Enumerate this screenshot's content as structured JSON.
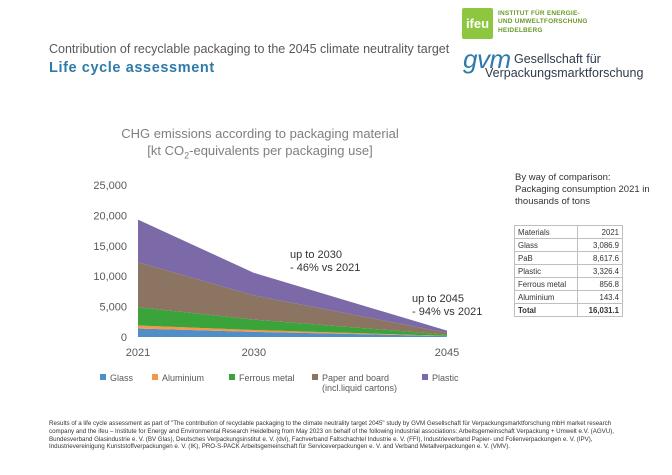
{
  "header": {
    "subtitle": "Contribution of recyclable packaging to the 2045 climate neutrality target",
    "heading": "Life cycle assessment"
  },
  "logos": {
    "ifeu_mark": "ifeu",
    "ifeu_name_line1": "INSTITUT FÜR ENERGIE-",
    "ifeu_name_line2": "UND UMWELTFORSCHUNG",
    "ifeu_name_line3": "HEIDELBERG",
    "gvm_mark": "gvm",
    "gvm_name_line1": "Gesellschaft für",
    "gvm_name_line2": "Verpackungsmarktforschung"
  },
  "chart_data": {
    "type": "area",
    "stacked": true,
    "title_line1": "CHG emissions according to packaging material",
    "title_line2_prefix": "[kt CO",
    "title_line2_sub": "2",
    "title_line2_suffix": "-equivalents per packaging use]",
    "x": [
      2021,
      2030,
      2045
    ],
    "x_tick_labels": [
      "2021",
      "2030",
      "2045"
    ],
    "ylim": [
      0,
      25000
    ],
    "y_ticks": [
      0,
      5000,
      10000,
      15000,
      20000,
      25000
    ],
    "y_tick_labels": [
      "0",
      "5,000",
      "10,000",
      "15,000",
      "20,000",
      "25,000"
    ],
    "grid": false,
    "legend_position": "bottom",
    "series": [
      {
        "name": "Glass",
        "color": "#4f8ec9",
        "values": [
          1400,
          850,
          150
        ]
      },
      {
        "name": "Aluminium",
        "color": "#f79646",
        "values": [
          500,
          300,
          40
        ]
      },
      {
        "name": "Ferrous metal",
        "color": "#3aa33a",
        "values": [
          3000,
          1700,
          200
        ]
      },
      {
        "name": "Paper and board",
        "name_line2": "(incl.liquid cartons)",
        "color": "#8c7462",
        "values": [
          7400,
          4000,
          300
        ]
      },
      {
        "name": "Plastic",
        "color": "#7b69a8",
        "values": [
          7000,
          3700,
          350
        ]
      }
    ],
    "annotations": [
      {
        "line1": "up to 2030",
        "line2": "- 46% vs 2021"
      },
      {
        "line1": "up to 2045",
        "line2": "- 94% vs 2021"
      }
    ]
  },
  "comparison": {
    "title": "By way of comparison:",
    "subtitle": "Packaging consumption 2021 in thousands of tons",
    "header": {
      "material": "Materials",
      "year": "2021"
    },
    "rows": [
      {
        "material": "Glass",
        "value": "3,086.9"
      },
      {
        "material": "PaB",
        "value": "8,617.6"
      },
      {
        "material": "Plastic",
        "value": "3,326.4"
      },
      {
        "material": "Ferrous metal",
        "value": "856.8"
      },
      {
        "material": "Aluminium",
        "value": "143.4"
      }
    ],
    "total": {
      "material": "Total",
      "value": "16,031.1"
    }
  },
  "footnote": "Results of a life cycle assessment as part of \"The contribution of recyclable packaging to the climate neutrality target 2045\" study by GVM Gesellschaft für Verpackungsmarktforschung mbH market research company and the ifeu – Institute for Energy and Environmental Research Heidelberg from May 2023 on behalf of the following industrial associations: Arbeitsgemeinschaft Verpackung + Umwelt e.V. (AGVU), Bundesverband Glasindustrie e. V. (BV Glas), Deutsches Verpackungsinstitut e. V. (dvi), Fachverband Faltschachtel Industrie e. V. (FFI), Industrieverband Papier- und Folienverpackungen e. V. (IPV), Industrievereinigung Kunststoffverpackungen e. V. (IK), PRO-S-PACK Arbeitsgemeinschaft für Serviceverpackungen e. V. and Verband Metallverpackungen e. V. (VMV)."
}
